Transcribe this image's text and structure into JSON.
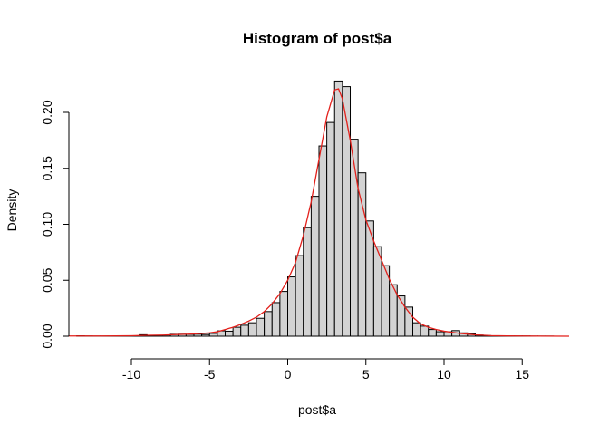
{
  "chart_data": {
    "type": "bar",
    "title": "Histogram of post$a",
    "xlabel": "post$a",
    "ylabel": "Density",
    "xlim": [
      -14,
      18
    ],
    "ylim": [
      0,
      0.22
    ],
    "bin_width": 0.5,
    "bins_start": [
      -13.5,
      -13.0,
      -12.5,
      -12.0,
      -11.5,
      -11.0,
      -10.5,
      -10.0,
      -9.5,
      -9.0,
      -8.5,
      -8.0,
      -7.5,
      -7.0,
      -6.5,
      -6.0,
      -5.5,
      -5.0,
      -4.5,
      -4.0,
      -3.5,
      -3.0,
      -2.5,
      -2.0,
      -1.5,
      -1.0,
      -0.5,
      0.0,
      0.5,
      1.0,
      1.5,
      2.0,
      2.5,
      3.0,
      3.5,
      4.0,
      4.5,
      5.0,
      5.5,
      6.0,
      6.5,
      7.0,
      7.5,
      8.0,
      8.5,
      9.0,
      9.5,
      10.0,
      10.5,
      11.0,
      11.5,
      12.0,
      12.5,
      13.0,
      13.5,
      14.0,
      14.5,
      15.0,
      15.5,
      16.0,
      16.5
    ],
    "values": [
      0.0004,
      0.0002,
      0.0001,
      0.0001,
      0.0001,
      0.0002,
      0.0001,
      0.0002,
      0.0013,
      0.0002,
      0.0002,
      0.0002,
      0.0017,
      0.0018,
      0.0016,
      0.0018,
      0.0015,
      0.0025,
      0.0048,
      0.0045,
      0.008,
      0.0098,
      0.012,
      0.016,
      0.022,
      0.03,
      0.04,
      0.053,
      0.072,
      0.097,
      0.125,
      0.17,
      0.191,
      0.228,
      0.223,
      0.176,
      0.146,
      0.103,
      0.08,
      0.063,
      0.046,
      0.036,
      0.026,
      0.012,
      0.009,
      0.006,
      0.004,
      0.004,
      0.005,
      0.003,
      0.002,
      0.001,
      0.0005,
      0.0004,
      0.0003,
      0.0002,
      0.0002,
      0.0002,
      0.0001,
      0.0001,
      0.0001
    ],
    "density_curve": {
      "x": [
        -14,
        -12,
        -10,
        -9,
        -8,
        -7,
        -6,
        -5,
        -4.5,
        -4,
        -3.5,
        -3,
        -2.5,
        -2,
        -1.5,
        -1,
        -0.5,
        0,
        0.5,
        1,
        1.5,
        2,
        2.5,
        3,
        3.25,
        3.5,
        4,
        4.5,
        5,
        5.5,
        6,
        6.5,
        7,
        7.5,
        8,
        8.5,
        9,
        9.5,
        10,
        11,
        12,
        13,
        14,
        16,
        18
      ],
      "y": [
        0.0002,
        0.0002,
        0.0004,
        0.0008,
        0.001,
        0.0015,
        0.002,
        0.003,
        0.004,
        0.006,
        0.008,
        0.0105,
        0.0135,
        0.017,
        0.022,
        0.029,
        0.038,
        0.05,
        0.066,
        0.09,
        0.12,
        0.158,
        0.196,
        0.22,
        0.221,
        0.212,
        0.175,
        0.132,
        0.104,
        0.085,
        0.068,
        0.051,
        0.037,
        0.026,
        0.017,
        0.011,
        0.008,
        0.006,
        0.0045,
        0.0025,
        0.0012,
        0.0005,
        0.0003,
        0.0001,
        0.0
      ],
      "color": "#e3201b"
    },
    "x_ticks": [
      "-10",
      "-5",
      "0",
      "5",
      "10",
      "15"
    ],
    "y_ticks": [
      "0.00",
      "0.05",
      "0.10",
      "0.15",
      "0.20"
    ],
    "bar_fill": "#d3d3d3",
    "bar_stroke": "#000000",
    "grid": false
  }
}
